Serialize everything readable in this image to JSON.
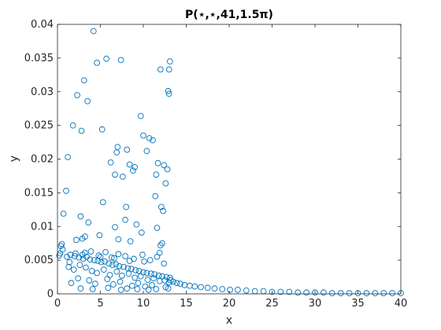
{
  "chart_data": {
    "type": "scatter",
    "title": "P(⋆,⋆,41,1.5π)",
    "xlabel": "x",
    "ylabel": "y",
    "xlim": [
      0,
      40
    ],
    "ylim": [
      0,
      0.04
    ],
    "xticks": [
      "0",
      "5",
      "10",
      "15",
      "20",
      "25",
      "30",
      "35",
      "40"
    ],
    "yticks": [
      "0",
      "0.005",
      "0.01",
      "0.015",
      "0.02",
      "0.025",
      "0.03",
      "0.035",
      "0.04"
    ],
    "grid": false,
    "marker": "circle-open",
    "color": "#0072bd",
    "series": [
      {
        "x": [
          4.2,
          5.7,
          7.4,
          13.1,
          12.0,
          13.0,
          4.6,
          3.1,
          2.3,
          3.5,
          12.9,
          13.0,
          9.7,
          1.8,
          2.8,
          5.2,
          10.0,
          10.7,
          11.1,
          10.4,
          7.0,
          8.1,
          6.9,
          1.2,
          11.7,
          8.4,
          6.2,
          12.4,
          9.0,
          8.8,
          12.8,
          6.7,
          11.5,
          7.6,
          1.0,
          12.6,
          11.4,
          8.0,
          12.1,
          5.3,
          0.7,
          2.7,
          7.9,
          12.3,
          3.6,
          9.2,
          6.7,
          2.9,
          9.8,
          3.2,
          11.6,
          7.1,
          12.2,
          2.2,
          4.9,
          8.5,
          12.0,
          0.5,
          0.4,
          0.3,
          0.2,
          0.6,
          1.1,
          1.5,
          2.0,
          2.5,
          3.0,
          3.4,
          3.8,
          4.3,
          4.7,
          5.1,
          5.5,
          6.0,
          6.4,
          6.8,
          7.2,
          7.7,
          8.2,
          8.6,
          9.1,
          9.5,
          10.0,
          10.4,
          10.9,
          11.3,
          11.8,
          12.2,
          12.7,
          13.1,
          1.3,
          1.9,
          2.6,
          3.3,
          4.0,
          4.6,
          5.4,
          6.1,
          6.9,
          7.5,
          8.3,
          9.0,
          9.7,
          10.5,
          11.2,
          11.9,
          12.5,
          13.0,
          1.6,
          2.4,
          3.7,
          4.4,
          5.8,
          6.5,
          7.3,
          8.7,
          9.4,
          10.2,
          11.0,
          12.6,
          1.4,
          2.1,
          2.9,
          3.9,
          4.8,
          5.6,
          6.3,
          7.1,
          7.9,
          8.9,
          9.9,
          10.8,
          11.6,
          12.4,
          2.7,
          4.1,
          5.9,
          7.4,
          8.1,
          9.3,
          10.6,
          11.5,
          12.9,
          3.2,
          5.0,
          6.6,
          8.4,
          10.1,
          11.9,
          13.2,
          13.5,
          13.9,
          14.3,
          14.8,
          15.4,
          16.0,
          16.7,
          17.5,
          18.3,
          19.2,
          20.1,
          21.0,
          22.0,
          23.0,
          24.0,
          25.0,
          26.0,
          27.0,
          28.0,
          29.0,
          30.0,
          31.0,
          32.0,
          33.0,
          34.0,
          35.0,
          36.0,
          37.0,
          38.0,
          39.0,
          40.0
        ],
        "y": [
          0.039,
          0.0349,
          0.0347,
          0.0345,
          0.0333,
          0.0333,
          0.0343,
          0.0317,
          0.0295,
          0.0286,
          0.0301,
          0.0297,
          0.0264,
          0.025,
          0.0242,
          0.0244,
          0.0235,
          0.0231,
          0.0228,
          0.0212,
          0.0218,
          0.0214,
          0.021,
          0.0203,
          0.0194,
          0.0192,
          0.0195,
          0.0191,
          0.0188,
          0.0183,
          0.0185,
          0.0177,
          0.0177,
          0.0174,
          0.0153,
          0.0164,
          0.0145,
          0.0129,
          0.0129,
          0.0136,
          0.0119,
          0.0115,
          0.011,
          0.0123,
          0.0106,
          0.0103,
          0.0099,
          0.0082,
          0.0091,
          0.0085,
          0.0098,
          0.0081,
          0.0075,
          0.008,
          0.0087,
          0.0078,
          0.0072,
          0.0074,
          0.0071,
          0.006,
          0.0057,
          0.0066,
          0.0055,
          0.0058,
          0.0056,
          0.0054,
          0.0052,
          0.0055,
          0.0051,
          0.005,
          0.0049,
          0.0047,
          0.0048,
          0.0045,
          0.0043,
          0.0044,
          0.0041,
          0.004,
          0.0038,
          0.0037,
          0.0035,
          0.0034,
          0.0032,
          0.0031,
          0.003,
          0.0029,
          0.0027,
          0.0026,
          0.0025,
          0.0024,
          0.004,
          0.0036,
          0.0043,
          0.0039,
          0.0034,
          0.0031,
          0.0036,
          0.0028,
          0.0033,
          0.0027,
          0.003,
          0.0024,
          0.0026,
          0.0021,
          0.0023,
          0.0019,
          0.002,
          0.0017,
          0.0016,
          0.0023,
          0.002,
          0.0015,
          0.0022,
          0.0014,
          0.0018,
          0.0012,
          0.0016,
          0.0011,
          0.0013,
          0.001,
          0.0047,
          0.006,
          0.0058,
          0.0063,
          0.0057,
          0.0062,
          0.0054,
          0.0059,
          0.0056,
          0.0052,
          0.0058,
          0.005,
          0.0055,
          0.0045,
          0.0008,
          0.0007,
          0.0009,
          0.0006,
          0.0008,
          0.0007,
          0.0006,
          0.0007,
          0.0008,
          0.0061,
          0.0055,
          0.0053,
          0.0049,
          0.0048,
          0.0061,
          0.002,
          0.0018,
          0.0016,
          0.0015,
          0.0013,
          0.0012,
          0.0011,
          0.001,
          0.0009,
          0.0008,
          0.0007,
          0.0006,
          0.0006,
          0.0005,
          0.0004,
          0.0004,
          0.0003,
          0.0003,
          0.0003,
          0.0002,
          0.0002,
          0.0002,
          0.0002,
          0.0001,
          0.0001,
          0.0001,
          0.0001,
          0.0001,
          0.0001,
          0.0001,
          0.0001,
          0.0001
        ]
      }
    ]
  }
}
